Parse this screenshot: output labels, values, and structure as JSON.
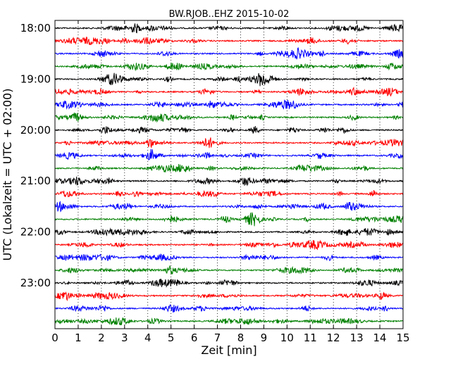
{
  "chart_data": {
    "type": "line",
    "title": "BW.RJOB..EHZ 2015-10-02",
    "xlabel": "Zeit  [min]",
    "ylabel": "UTC (Lokalzeit = UTC + 02:00)",
    "xlim": [
      0,
      15
    ],
    "x_ticks": [
      "0",
      "1",
      "2",
      "3",
      "4",
      "5",
      "6",
      "7",
      "8",
      "9",
      "10",
      "11",
      "12",
      "13",
      "14",
      "15"
    ],
    "y_tick_labels": [
      "18:00",
      "19:00",
      "20:00",
      "21:00",
      "22:00",
      "23:00"
    ],
    "grid": "vertical dotted",
    "trace_interval_min": 15,
    "trace_colors": [
      "#000000",
      "#ff0000",
      "#0000ff",
      "#008000"
    ],
    "series": [
      {
        "start": "18:00",
        "color": "#000000"
      },
      {
        "start": "18:15",
        "color": "#ff0000"
      },
      {
        "start": "18:30",
        "color": "#0000ff"
      },
      {
        "start": "18:45",
        "color": "#008000"
      },
      {
        "start": "19:00",
        "color": "#000000"
      },
      {
        "start": "19:15",
        "color": "#ff0000"
      },
      {
        "start": "19:30",
        "color": "#0000ff"
      },
      {
        "start": "19:45",
        "color": "#008000"
      },
      {
        "start": "20:00",
        "color": "#000000"
      },
      {
        "start": "20:15",
        "color": "#ff0000"
      },
      {
        "start": "20:30",
        "color": "#0000ff"
      },
      {
        "start": "20:45",
        "color": "#008000"
      },
      {
        "start": "21:00",
        "color": "#000000"
      },
      {
        "start": "21:15",
        "color": "#ff0000"
      },
      {
        "start": "21:30",
        "color": "#0000ff"
      },
      {
        "start": "21:45",
        "color": "#008000"
      },
      {
        "start": "22:00",
        "color": "#000000"
      },
      {
        "start": "22:15",
        "color": "#ff0000"
      },
      {
        "start": "22:30",
        "color": "#0000ff"
      },
      {
        "start": "22:45",
        "color": "#008000"
      },
      {
        "start": "23:00",
        "color": "#000000"
      },
      {
        "start": "23:15",
        "color": "#ff0000"
      },
      {
        "start": "23:30",
        "color": "#0000ff"
      },
      {
        "start": "23:45",
        "color": "#008000"
      }
    ]
  }
}
